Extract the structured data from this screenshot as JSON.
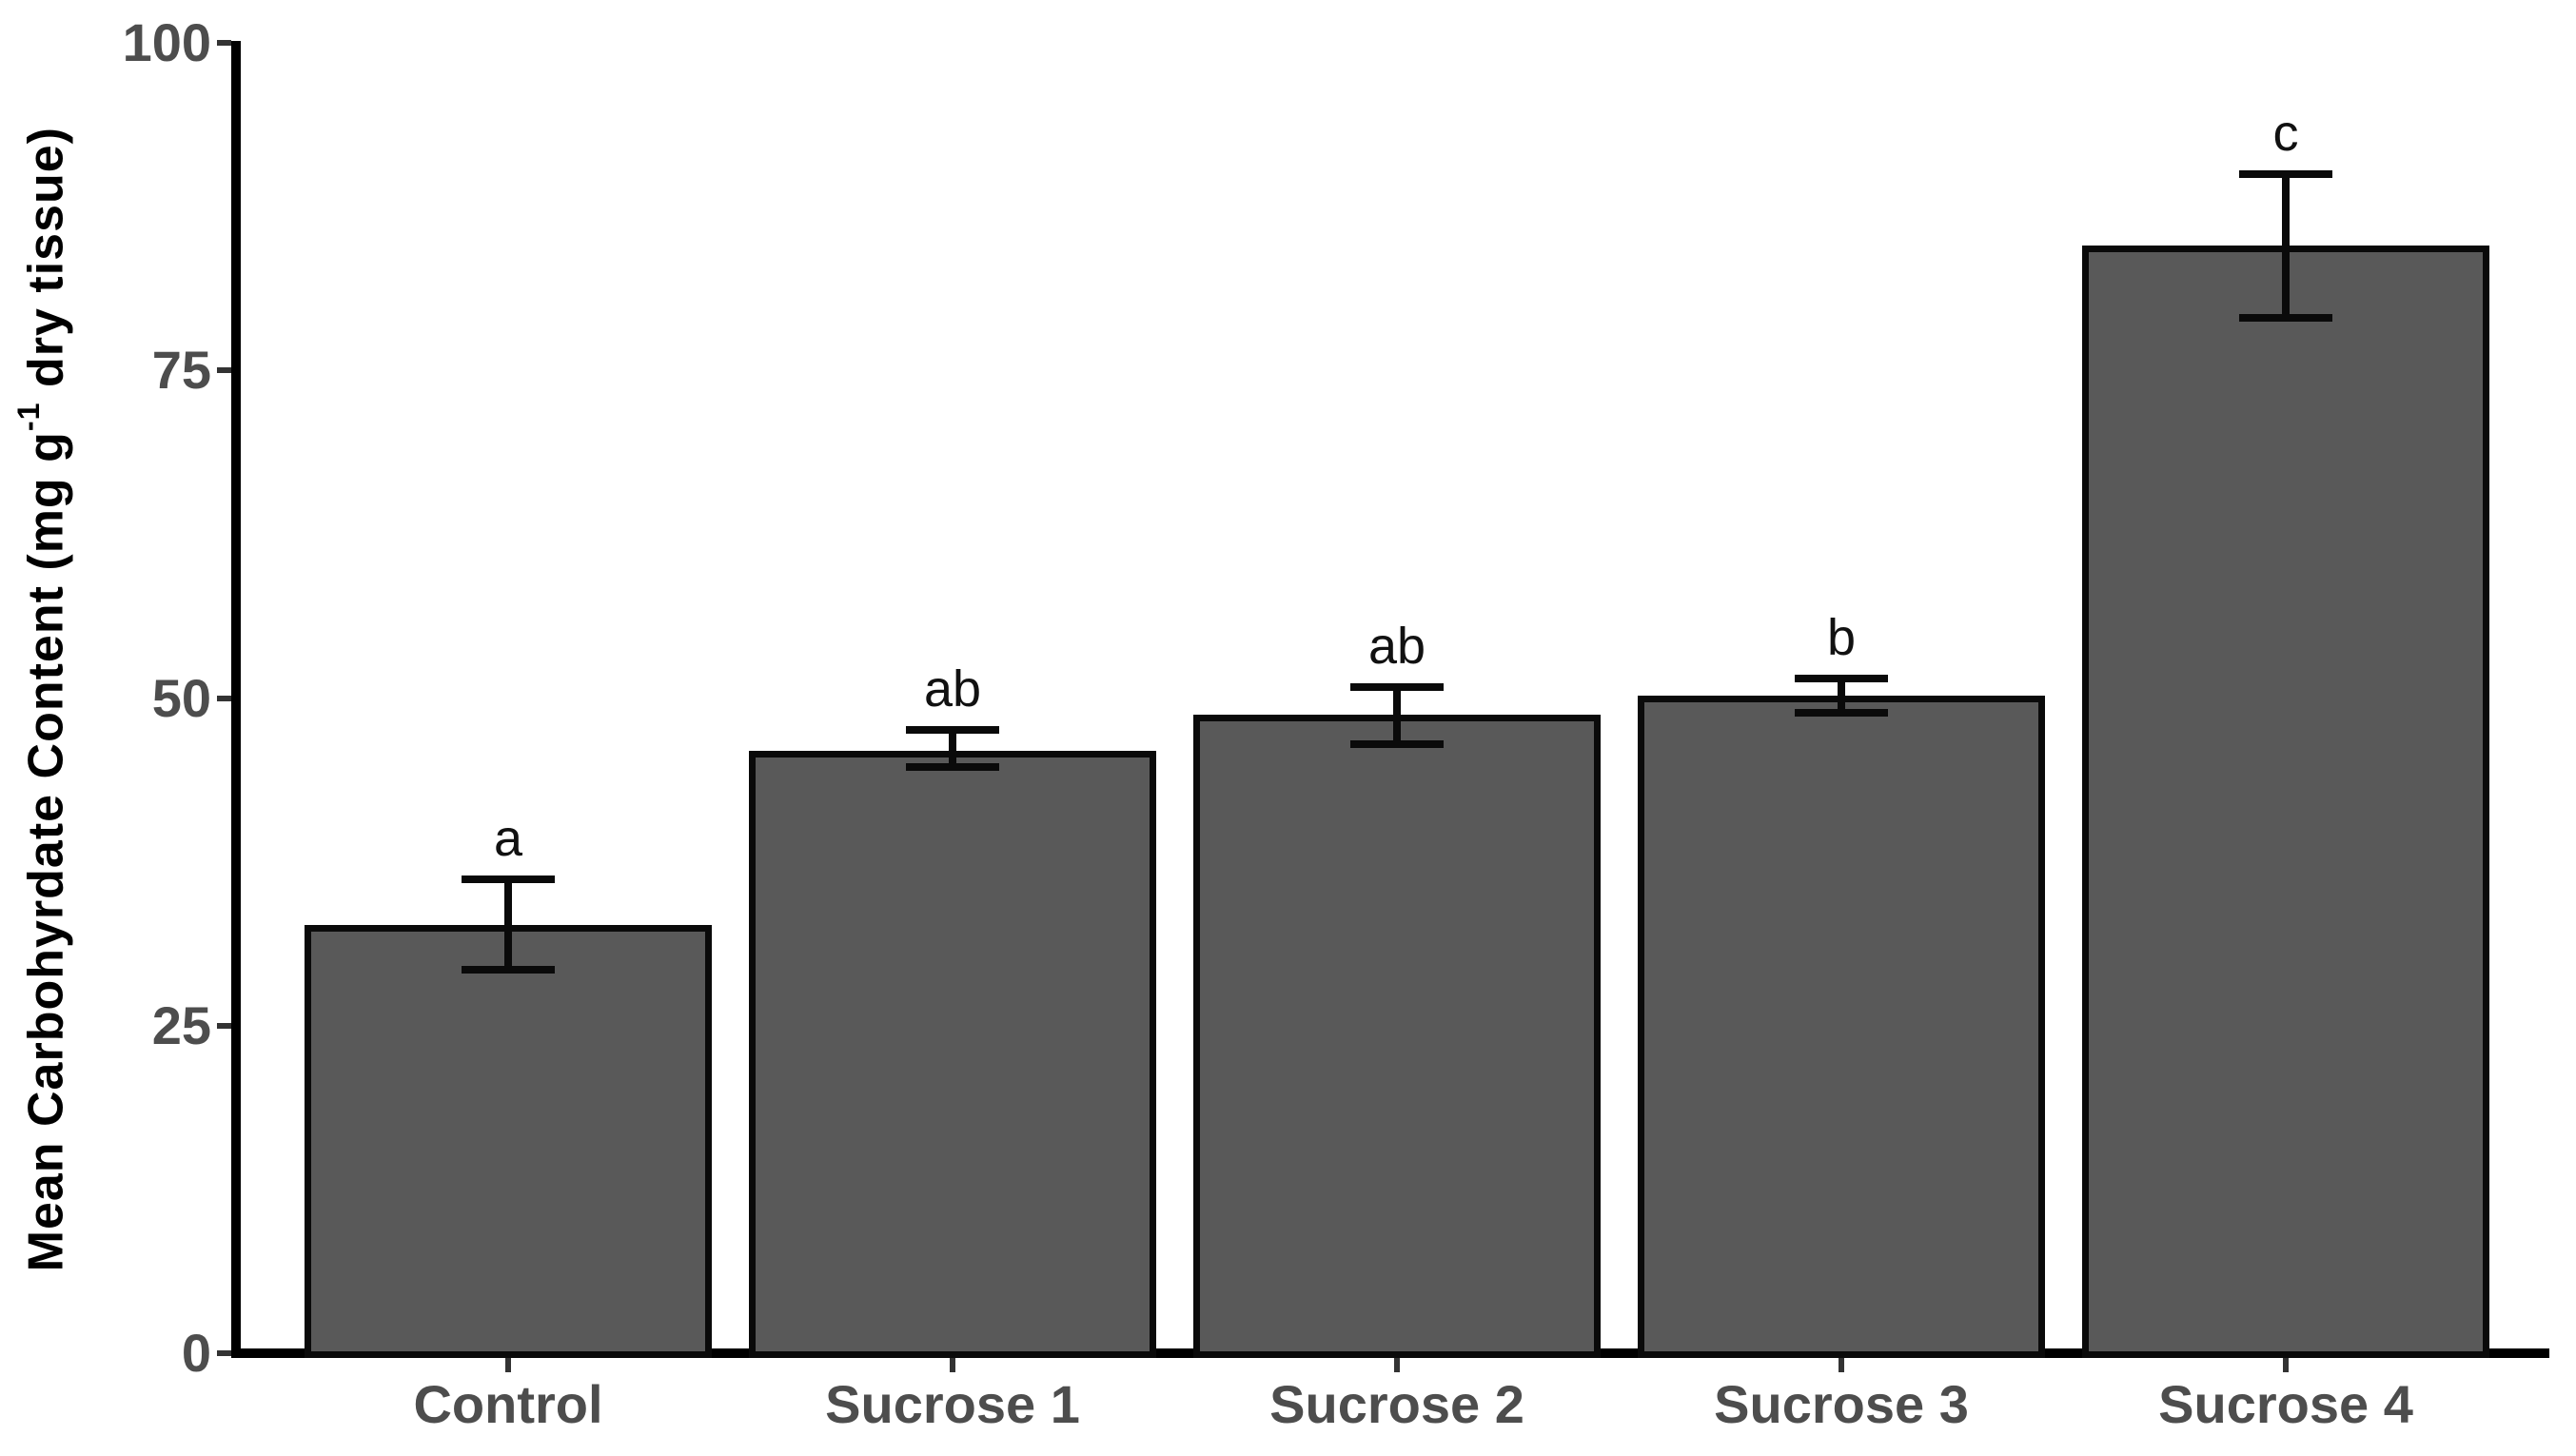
{
  "chart_data": {
    "type": "bar",
    "title": "",
    "categories": [
      "Control",
      "Sucrose 1",
      "Sucrose 2",
      "Sucrose 3",
      "Sucrose 4"
    ],
    "values": [
      32.7,
      46.0,
      48.7,
      50.2,
      84.5
    ],
    "error_upper": [
      36.2,
      47.6,
      50.8,
      51.5,
      90.0
    ],
    "error_lower": [
      29.3,
      44.7,
      46.5,
      48.9,
      79.0
    ],
    "sig_letters": [
      "a",
      "ab",
      "ab",
      "b",
      "c"
    ],
    "xlabel": "",
    "ylabel": "Mean Carbohyrdate Content (mg g-1 dry tissue)",
    "ylabel_parts": {
      "pre": "Mean Carbohyrdate Content (mg g",
      "sup": "-1",
      "post": " dry tissue)"
    },
    "ylim": [
      0,
      100
    ],
    "yticks": [
      0,
      25,
      50,
      75,
      100
    ],
    "grid": false,
    "legend": "none",
    "colors": {
      "bar_fill": "#595959",
      "bar_border": "#0a0a0a",
      "axis": "#000000",
      "tick_label": "#4d4d4d",
      "sig_letter": "#111111"
    }
  }
}
